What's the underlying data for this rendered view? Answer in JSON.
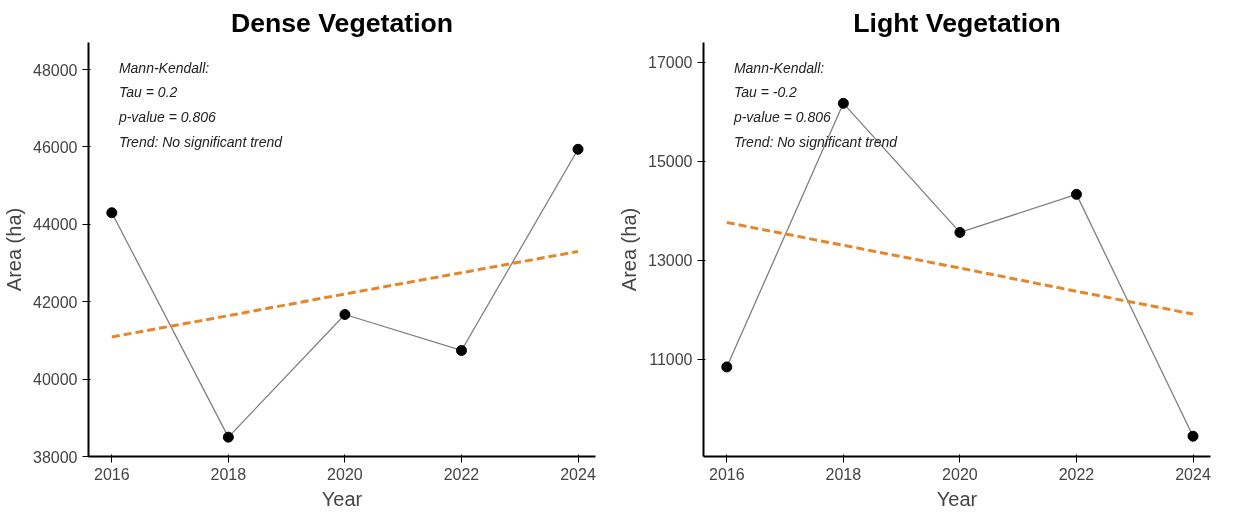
{
  "chart_data": [
    {
      "type": "line",
      "title": "Dense Vegetation",
      "xlabel": "Year",
      "ylabel": "Area (ha)",
      "x": [
        2016,
        2018,
        2020,
        2022,
        2024
      ],
      "xlim": [
        2015.6,
        2024.3
      ],
      "xticks": [
        2016,
        2018,
        2020,
        2022,
        2024
      ],
      "ylim": [
        38000,
        48700
      ],
      "yticks": [
        38000,
        40000,
        42000,
        44000,
        46000,
        48000
      ],
      "grid": false,
      "annotations": [
        "Mann-Kendall:",
        "Tau = 0.2",
        "p-value = 0.806",
        "Trend: No significant trend"
      ],
      "series": [
        {
          "color": "#000000",
          "marker": "circle",
          "line_style": "solid",
          "values": [
            44300,
            38500,
            41670,
            40740,
            45940
          ]
        },
        {
          "type": "line",
          "color": "#e6862a",
          "marker": "none",
          "line_style": "dashed",
          "values": [
            41090,
            41640,
            42200,
            42750,
            43300
          ]
        }
      ]
    },
    {
      "type": "line",
      "title": "Light Vegetation",
      "xlabel": "Year",
      "ylabel": "Area (ha)",
      "x": [
        2016,
        2018,
        2020,
        2022,
        2024
      ],
      "xlim": [
        2015.6,
        2024.3
      ],
      "xticks": [
        2016,
        2018,
        2020,
        2022,
        2024
      ],
      "ylim": [
        9030,
        17400
      ],
      "yticks": [
        11000,
        13000,
        15000,
        17000
      ],
      "grid": false,
      "annotations": [
        "Mann-Kendall:",
        "Tau = -0.2",
        "p-value = 0.806",
        "Trend: No significant trend"
      ],
      "series": [
        {
          "color": "#000000",
          "marker": "circle",
          "line_style": "solid",
          "values": [
            10840,
            16170,
            13560,
            14330,
            9440
          ]
        },
        {
          "type": "line",
          "color": "#e6862a",
          "marker": "none",
          "line_style": "dashed",
          "values": [
            13760,
            13300,
            12840,
            12370,
            11910
          ]
        }
      ]
    }
  ]
}
